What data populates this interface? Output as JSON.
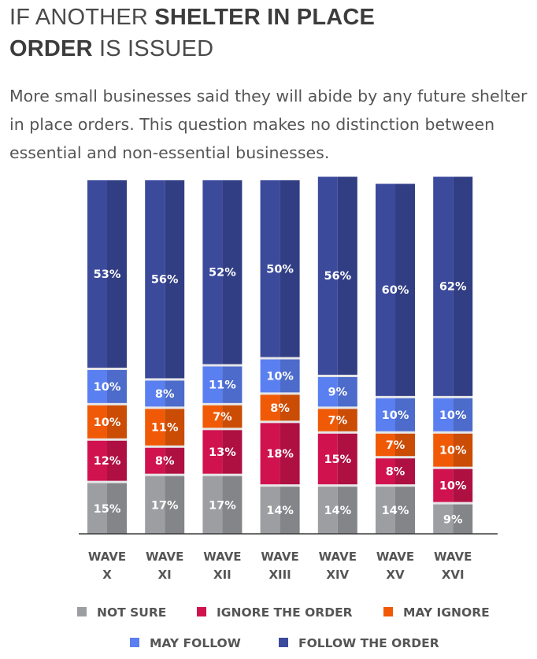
{
  "header": {
    "title_part1": "IF ANOTHER ",
    "title_bold1": "SHELTER IN PLACE",
    "title_bold2": "ORDER",
    "title_part2": " IS ISSUED",
    "subtitle": "More small businesses said they will abide by any future shelter in place orders. This question makes no distinction between essential and non-essential businesses."
  },
  "chart_data": {
    "type": "bar",
    "stacked": true,
    "title": "IF ANOTHER SHELTER IN PLACE ORDER IS ISSUED",
    "categories": [
      [
        "WAVE",
        "X"
      ],
      [
        "WAVE",
        "XI"
      ],
      [
        "WAVE",
        "XII"
      ],
      [
        "WAVE",
        "XIII"
      ],
      [
        "WAVE",
        "XIV"
      ],
      [
        "WAVE",
        "XV"
      ],
      [
        "WAVE",
        "XVI"
      ]
    ],
    "series": [
      {
        "name": "NOT SURE",
        "color": "#9d9ea2",
        "values": [
          15,
          17,
          17,
          14,
          14,
          14,
          9
        ]
      },
      {
        "name": "IGNORE THE ORDER",
        "color": "#d0134f",
        "values": [
          12,
          8,
          13,
          18,
          15,
          8,
          10
        ]
      },
      {
        "name": "MAY IGNORE",
        "color": "#f05a06",
        "values": [
          10,
          11,
          7,
          8,
          7,
          7,
          10
        ]
      },
      {
        "name": "MAY FOLLOW",
        "color": "#5a7ff0",
        "values": [
          10,
          8,
          11,
          10,
          9,
          10,
          10
        ]
      },
      {
        "name": "FOLLOW THE ORDER",
        "color": "#3c4a9c",
        "values": [
          53,
          56,
          52,
          50,
          56,
          60,
          62
        ]
      }
    ],
    "value_suffix": "%",
    "xlabel": "",
    "ylabel": "",
    "grid": false,
    "legend_position": "bottom"
  }
}
